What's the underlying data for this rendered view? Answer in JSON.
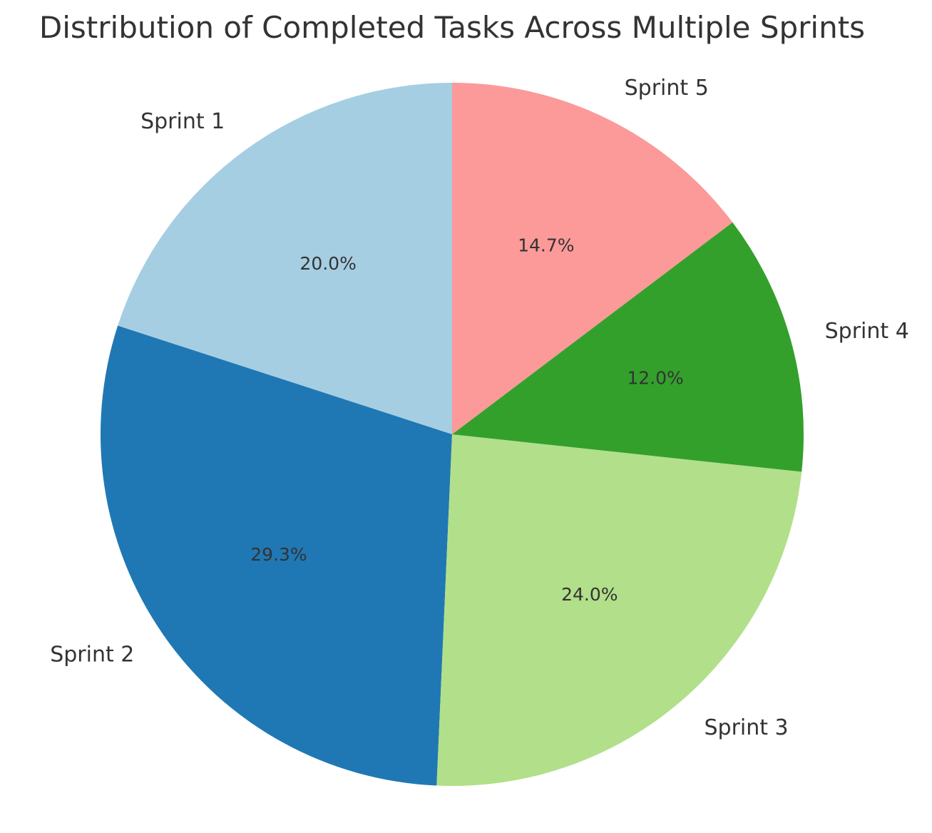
{
  "chart_data": {
    "type": "pie",
    "title": "Distribution of Completed Tasks Across Multiple Sprints",
    "slices": [
      {
        "label": "Sprint 1",
        "percent": 20.0,
        "percent_label": "20.0%",
        "color": "#a6cee3"
      },
      {
        "label": "Sprint 2",
        "percent": 29.3,
        "percent_label": "29.3%",
        "color": "#1f78b4"
      },
      {
        "label": "Sprint 3",
        "percent": 24.0,
        "percent_label": "24.0%",
        "color": "#b2df8a"
      },
      {
        "label": "Sprint 4",
        "percent": 12.0,
        "percent_label": "12.0%",
        "color": "#33a02c"
      },
      {
        "label": "Sprint 5",
        "percent": 14.7,
        "percent_label": "14.7%",
        "color": "#fb9a99"
      }
    ],
    "start_angle_deg": 90,
    "direction": "counterclockwise",
    "legend": "none"
  }
}
